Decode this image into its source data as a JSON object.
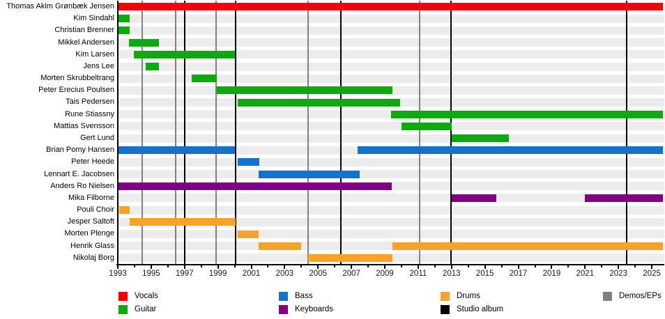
{
  "chart_data": {
    "type": "timeline",
    "title": "Band members timeline (Gantt-style tenure chart)",
    "x_axis": {
      "min_year": 1993,
      "max_year": 2025.75,
      "labeled_ticks": [
        1993,
        1995,
        1997,
        1999,
        2001,
        2003,
        2005,
        2007,
        2009,
        2011,
        2013,
        2015,
        2017,
        2019,
        2021,
        2023,
        2025
      ],
      "minor_ticks": [
        1994,
        1996,
        1998,
        2000,
        2002,
        2004,
        2006,
        2008,
        2010,
        2012,
        2014,
        2016,
        2018,
        2020,
        2022,
        2024
      ],
      "grid": false
    },
    "rows": [
      {
        "label": "Thomas Akim Grønbæk Jensen",
        "role": "vocals",
        "segments": [
          [
            1993.05,
            2025.65
          ]
        ]
      },
      {
        "label": "Kim Sindahl",
        "role": "guitar",
        "segments": [
          [
            1993.05,
            1993.72
          ]
        ]
      },
      {
        "label": "Christian Brenner",
        "role": "guitar",
        "segments": [
          [
            1993.05,
            1993.72
          ]
        ]
      },
      {
        "label": "Mikkel Andersen",
        "role": "guitar",
        "segments": [
          [
            1993.65,
            1995.45
          ]
        ]
      },
      {
        "label": "Kim Larsen",
        "role": "guitar",
        "segments": [
          [
            1993.97,
            2000.02
          ]
        ]
      },
      {
        "label": "Jens Lee",
        "role": "guitar",
        "segments": [
          [
            1994.67,
            1995.45
          ]
        ]
      },
      {
        "label": "Morten Skrubbeltrang",
        "role": "guitar",
        "segments": [
          [
            1997.42,
            1998.95
          ]
        ]
      },
      {
        "label": "Peter Erecius Poulsen",
        "role": "guitar",
        "segments": [
          [
            1998.93,
            2009.45
          ]
        ]
      },
      {
        "label": "Tais Pedersen",
        "role": "guitar",
        "segments": [
          [
            2000.2,
            2009.9
          ]
        ]
      },
      {
        "label": "Rune Stiassny",
        "role": "guitar",
        "segments": [
          [
            2009.38,
            2025.65
          ]
        ]
      },
      {
        "label": "Mattias Svensson",
        "role": "guitar",
        "segments": [
          [
            2010.0,
            2013.0
          ]
        ]
      },
      {
        "label": "Gert Lund",
        "role": "guitar",
        "segments": [
          [
            2013.02,
            2016.43
          ]
        ]
      },
      {
        "label": "Brian Pomy Hansen",
        "role": "bass",
        "segments": [
          [
            1993.05,
            2000.02
          ],
          [
            2007.38,
            2025.65
          ]
        ]
      },
      {
        "label": "Peter Heede",
        "role": "bass",
        "segments": [
          [
            2000.2,
            2001.5
          ]
        ]
      },
      {
        "label": "Lennart E. Jacobsen",
        "role": "bass",
        "segments": [
          [
            2001.45,
            2007.5
          ]
        ]
      },
      {
        "label": "Anders Ro Nielsen",
        "role": "keyboards",
        "segments": [
          [
            1993.05,
            2009.42
          ]
        ]
      },
      {
        "label": "Mika Filborne",
        "role": "keyboards",
        "segments": [
          [
            2013.02,
            2015.67
          ],
          [
            2020.97,
            2025.65
          ]
        ]
      },
      {
        "label": "Pouli Choir",
        "role": "drums",
        "segments": [
          [
            1993.08,
            1993.72
          ]
        ]
      },
      {
        "label": "Jesper Saltoft",
        "role": "drums",
        "segments": [
          [
            1993.7,
            2000.06
          ]
        ]
      },
      {
        "label": "Morten Plenge",
        "role": "drums",
        "segments": [
          [
            2000.2,
            2001.45
          ]
        ]
      },
      {
        "label": "Henrik Glass",
        "role": "drums",
        "segments": [
          [
            2001.45,
            2003.97
          ],
          [
            2009.46,
            2025.65
          ]
        ]
      },
      {
        "label": "Nikolaj Borg",
        "role": "drums",
        "segments": [
          [
            2004.4,
            2009.46
          ]
        ]
      }
    ],
    "release_lines": {
      "studio_album": [
        1997.02,
        2000.07,
        2006.35,
        2012.95,
        2023.5
      ],
      "demos_eps": [
        1994.45,
        1996.45,
        1998.9,
        2004.4,
        2011.07
      ]
    },
    "legend": {
      "position": "bottom",
      "columns": [
        [
          {
            "label": "Vocals",
            "color_key": "vocals"
          },
          {
            "label": "Guitar",
            "color_key": "guitar"
          }
        ],
        [
          {
            "label": "Bass",
            "color_key": "bass"
          },
          {
            "label": "Keyboards",
            "color_key": "keyboards"
          }
        ],
        [
          {
            "label": "Drums",
            "color_key": "drums"
          },
          {
            "label": "Studio album",
            "color_key": "studio_album"
          }
        ],
        [
          {
            "label": "Demos/EPs",
            "color_key": "demos_eps"
          }
        ]
      ]
    },
    "colors": {
      "vocals": "#f20000",
      "guitar": "#10a810",
      "bass": "#1472c8",
      "keyboards": "#800080",
      "drums": "#f7a22b",
      "studio_album": "#000000",
      "demos_eps": "#808080",
      "row_stripe": "#ececec",
      "axis": "#000000"
    }
  }
}
